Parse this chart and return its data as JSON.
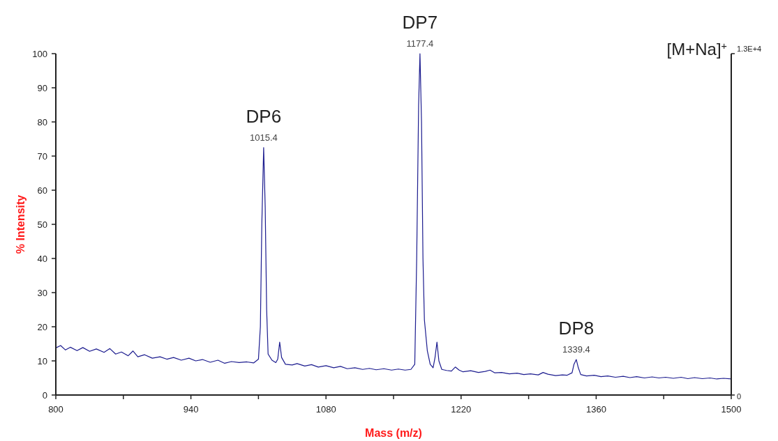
{
  "chart_data": {
    "type": "line",
    "xlabel": "Mass (m/z)",
    "ylabel": "% Intensity",
    "xlim": [
      800,
      1500
    ],
    "xticks": [
      800,
      {
        "value": 870,
        "label": null
      },
      940,
      {
        "value": 1010,
        "label": null
      },
      1080,
      {
        "value": 1150,
        "label": null
      },
      1220,
      {
        "value": 1290,
        "label": null
      },
      1360,
      {
        "value": 1430,
        "label": null
      },
      1500
    ],
    "ylim": [
      0,
      100
    ],
    "yticks": [
      0,
      10,
      20,
      30,
      40,
      50,
      60,
      70,
      80,
      90,
      100
    ],
    "y2lim": [
      0,
      13000
    ],
    "y2ticks": [
      0,
      {
        "value": 13000,
        "label": "1.3E+4"
      }
    ],
    "marker": "none",
    "line_style": "solid",
    "series": [
      {
        "color": "#1c1c8f",
        "x": [
          800,
          805,
          810,
          815,
          822,
          828,
          835,
          842,
          850,
          856,
          862,
          868,
          875,
          880,
          885,
          892,
          900,
          908,
          915,
          922,
          930,
          938,
          945,
          952,
          960,
          968,
          975,
          982,
          990,
          998,
          1005,
          1010,
          1012,
          1013.5,
          1015.4,
          1017,
          1018.5,
          1020,
          1024,
          1028,
          1030,
          1032,
          1034,
          1038,
          1045,
          1050,
          1058,
          1065,
          1072,
          1080,
          1088,
          1095,
          1102,
          1110,
          1118,
          1125,
          1132,
          1140,
          1148,
          1155,
          1162,
          1168,
          1172,
          1174,
          1176,
          1177.4,
          1179,
          1180.5,
          1182,
          1185,
          1188,
          1191,
          1193,
          1195,
          1197,
          1200,
          1205,
          1210,
          1214,
          1218,
          1222,
          1230,
          1238,
          1245,
          1250,
          1255,
          1262,
          1270,
          1278,
          1285,
          1292,
          1300,
          1305,
          1310,
          1318,
          1325,
          1330,
          1335,
          1337,
          1339.4,
          1341.5,
          1344,
          1350,
          1358,
          1365,
          1372,
          1380,
          1388,
          1395,
          1402,
          1410,
          1418,
          1425,
          1432,
          1440,
          1448,
          1455,
          1462,
          1470,
          1478,
          1485,
          1492,
          1500
        ],
        "values": [
          13.8,
          14.5,
          13.2,
          14.0,
          13.0,
          13.9,
          12.8,
          13.5,
          12.5,
          13.6,
          12.0,
          12.6,
          11.5,
          12.9,
          11.2,
          11.8,
          10.8,
          11.2,
          10.5,
          11.0,
          10.2,
          10.8,
          10.0,
          10.4,
          9.6,
          10.2,
          9.3,
          9.8,
          9.5,
          9.7,
          9.4,
          10.5,
          20,
          50,
          72.5,
          55,
          25,
          12,
          10.2,
          9.5,
          10.5,
          15.5,
          11,
          9,
          8.8,
          9.2,
          8.5,
          8.9,
          8.2,
          8.6,
          8.0,
          8.4,
          7.7,
          8.0,
          7.5,
          7.8,
          7.4,
          7.7,
          7.3,
          7.6,
          7.3,
          7.5,
          9,
          40,
          85,
          100,
          80,
          40,
          22,
          13,
          9,
          8,
          11,
          15.5,
          10,
          7.5,
          7.2,
          7.0,
          8.2,
          7.3,
          6.8,
          7.1,
          6.6,
          6.9,
          7.3,
          6.5,
          6.6,
          6.2,
          6.4,
          6.0,
          6.2,
          5.9,
          6.6,
          6.1,
          5.7,
          5.9,
          5.8,
          6.5,
          9,
          10.4,
          8,
          6.0,
          5.6,
          5.8,
          5.4,
          5.6,
          5.2,
          5.5,
          5.1,
          5.4,
          5.0,
          5.3,
          5.0,
          5.2,
          4.9,
          5.2,
          4.8,
          5.1,
          4.8,
          5.0,
          4.7,
          4.9,
          4.7
        ]
      }
    ],
    "annotations": [
      {
        "text": "DP6",
        "x": 1015.4,
        "y": 72.5
      },
      {
        "text": "1015.4",
        "x": 1015.4,
        "y": 72.5
      },
      {
        "text": "DP7",
        "x": 1177.4,
        "y": 100
      },
      {
        "text": "1177.4",
        "x": 1177.4,
        "y": 100
      },
      {
        "text": "DP8",
        "x": 1339.4,
        "y": 10.4
      },
      {
        "text": "1339.4",
        "x": 1339.4,
        "y": 10.4
      },
      "[M+Na]$^{+}$"
    ]
  }
}
